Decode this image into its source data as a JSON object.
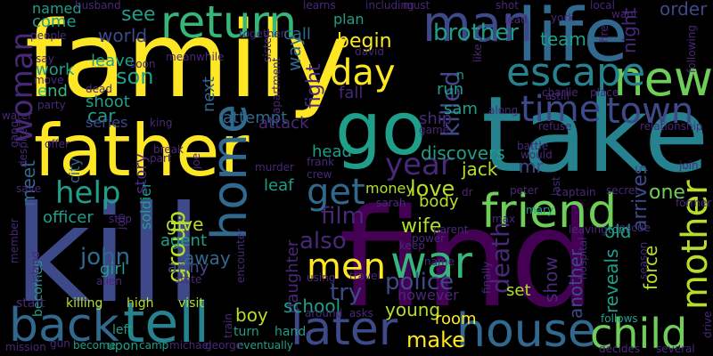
{
  "palette": {
    "yellow": "#fde725",
    "lime": "#b5de2b",
    "lgreen": "#6ece58",
    "green": "#35b779",
    "teal": "#1f9e89",
    "cyan": "#26828e",
    "blue": "#31688e",
    "indigo": "#3e4989",
    "purple": "#482878",
    "dpurple": "#440154"
  },
  "words": [
    {
      "t": "family",
      "c": "yellow"
    },
    {
      "t": "kill",
      "c": "indigo"
    },
    {
      "t": "find",
      "c": "dpurple"
    },
    {
      "t": "take",
      "c": "cyan"
    },
    {
      "t": "father",
      "c": "yellow"
    },
    {
      "t": "life",
      "c": "blue"
    },
    {
      "t": "man",
      "c": "indigo"
    },
    {
      "t": "go",
      "c": "teal"
    },
    {
      "t": "back",
      "c": "blue"
    },
    {
      "t": "tell",
      "c": "cyan"
    },
    {
      "t": "home",
      "c": "blue"
    },
    {
      "t": "return",
      "c": "green"
    },
    {
      "t": "new",
      "c": "lgreen"
    },
    {
      "t": "friend",
      "c": "lgreen"
    },
    {
      "t": "later",
      "c": "indigo"
    },
    {
      "t": "house",
      "c": "blue"
    },
    {
      "t": "child",
      "c": "lgreen"
    },
    {
      "t": "escape",
      "c": "cyan"
    },
    {
      "t": "time",
      "c": "indigo"
    },
    {
      "t": "town",
      "c": "indigo"
    },
    {
      "t": "war",
      "c": "green"
    },
    {
      "t": "mother",
      "c": "lime"
    },
    {
      "t": "men",
      "c": "yellow"
    },
    {
      "t": "day",
      "c": "yellow"
    },
    {
      "t": "get",
      "c": "blue"
    },
    {
      "t": "year",
      "c": "purple"
    },
    {
      "t": "help",
      "c": "teal"
    },
    {
      "t": "woman",
      "c": "purple"
    },
    {
      "t": "love",
      "c": "lime"
    },
    {
      "t": "police",
      "c": "indigo"
    },
    {
      "t": "make",
      "c": "yellow"
    },
    {
      "t": "film",
      "c": "purple"
    },
    {
      "t": "death",
      "c": "purple"
    },
    {
      "t": "group",
      "c": "lime"
    },
    {
      "t": "killed",
      "c": "indigo"
    },
    {
      "t": "brother",
      "c": "teal"
    },
    {
      "t": "son",
      "c": "teal"
    },
    {
      "t": "john",
      "c": "blue"
    },
    {
      "t": "also",
      "c": "purple"
    },
    {
      "t": "try",
      "c": "indigo"
    },
    {
      "t": "see",
      "c": "teal"
    },
    {
      "t": "world",
      "c": "indigo"
    },
    {
      "t": "begin",
      "c": "yellow"
    },
    {
      "t": "fight",
      "c": "purple"
    },
    {
      "t": "wife",
      "c": "lime"
    },
    {
      "t": "daughter",
      "c": "purple"
    },
    {
      "t": "school",
      "c": "teal"
    },
    {
      "t": "young",
      "c": "lime"
    },
    {
      "t": "boy",
      "c": "lime"
    },
    {
      "t": "room",
      "c": "yellow"
    },
    {
      "t": "show",
      "c": "purple"
    },
    {
      "t": "another",
      "c": "indigo"
    },
    {
      "t": "reveals",
      "c": "teal"
    },
    {
      "t": "force",
      "c": "lime"
    },
    {
      "t": "old",
      "c": "teal"
    },
    {
      "t": "one",
      "c": "lgreen"
    },
    {
      "t": "arrives",
      "c": "indigo"
    },
    {
      "t": "mr",
      "c": "indigo"
    },
    {
      "t": "jack",
      "c": "lime"
    },
    {
      "t": "discovers",
      "c": "teal"
    },
    {
      "t": "money",
      "c": "lime"
    },
    {
      "t": "body",
      "c": "lime"
    },
    {
      "t": "soldier",
      "c": "teal"
    },
    {
      "t": "leaf",
      "c": "teal"
    },
    {
      "t": "officer",
      "c": "teal"
    },
    {
      "t": "give",
      "c": "lime"
    },
    {
      "t": "agent",
      "c": "teal"
    },
    {
      "t": "away",
      "c": "blue"
    },
    {
      "t": "army",
      "c": "indigo"
    },
    {
      "t": "girl",
      "c": "teal"
    },
    {
      "t": "meet",
      "c": "blue"
    },
    {
      "t": "city",
      "c": "blue"
    },
    {
      "t": "work",
      "c": "teal"
    },
    {
      "t": "come",
      "c": "teal"
    },
    {
      "t": "named",
      "c": "teal"
    },
    {
      "t": "end",
      "c": "green"
    },
    {
      "t": "shoot",
      "c": "teal"
    },
    {
      "t": "car",
      "c": "teal"
    },
    {
      "t": "series",
      "c": "indigo"
    },
    {
      "t": "story",
      "c": "purple"
    },
    {
      "t": "leave",
      "c": "teal"
    },
    {
      "t": "next",
      "c": "blue"
    },
    {
      "t": "way",
      "c": "blue"
    },
    {
      "t": "attempt",
      "c": "blue"
    },
    {
      "t": "attack",
      "c": "purple"
    },
    {
      "t": "call",
      "c": "blue"
    },
    {
      "t": "plan",
      "c": "teal"
    },
    {
      "t": "fall",
      "c": "purple"
    },
    {
      "t": "sam",
      "c": "teal"
    },
    {
      "t": "run",
      "c": "teal"
    },
    {
      "t": "ship",
      "c": "purple"
    },
    {
      "t": "head",
      "c": "teal"
    },
    {
      "t": "team",
      "c": "teal"
    },
    {
      "t": "order",
      "c": "indigo"
    },
    {
      "t": "night",
      "c": "purple"
    },
    {
      "t": "set",
      "c": "lime"
    },
    {
      "t": "however",
      "c": "purple"
    },
    {
      "t": "becomes",
      "c": "teal"
    },
    {
      "t": "hand",
      "c": "teal"
    },
    {
      "t": "turn",
      "c": "teal"
    },
    {
      "t": "killing",
      "c": "lime"
    },
    {
      "t": "high",
      "c": "lime"
    },
    {
      "t": "visit",
      "c": "lime"
    },
    {
      "t": "left",
      "c": "teal"
    },
    {
      "t": "upon",
      "c": "teal"
    },
    {
      "t": "become",
      "c": "teal"
    },
    {
      "t": "camp",
      "c": "teal"
    },
    {
      "t": "michael",
      "c": "purple"
    },
    {
      "t": "eventually",
      "c": "teal"
    },
    {
      "t": "around",
      "c": "purple"
    },
    {
      "t": "asks",
      "c": "purple"
    },
    {
      "t": "start",
      "c": "purple"
    },
    {
      "t": "mission",
      "c": "purple"
    },
    {
      "t": "gun",
      "c": "purple"
    },
    {
      "t": "decides",
      "c": "purple"
    },
    {
      "t": "several",
      "c": "purple"
    },
    {
      "t": "follows",
      "c": "teal"
    },
    {
      "t": "drive",
      "c": "purple"
    },
    {
      "t": "king",
      "c": "purple"
    },
    {
      "t": "rescue",
      "c": "purple"
    },
    {
      "t": "leaving",
      "c": "purple"
    },
    {
      "t": "tom",
      "c": "teal"
    },
    {
      "t": "finally",
      "c": "purple"
    },
    {
      "t": "travel",
      "c": "purple"
    },
    {
      "t": "using",
      "c": "purple"
    },
    {
      "t": "mary",
      "c": "teal"
    },
    {
      "t": "captain",
      "c": "purple"
    },
    {
      "t": "secret",
      "c": "purple"
    },
    {
      "t": "former",
      "c": "purple"
    },
    {
      "t": "join",
      "c": "purple"
    },
    {
      "t": "relationship",
      "c": "purple"
    },
    {
      "t": "refuse",
      "c": "purple"
    },
    {
      "t": "battle",
      "c": "purple"
    },
    {
      "t": "would",
      "c": "purple"
    },
    {
      "t": "including",
      "c": "purple"
    },
    {
      "t": "must",
      "c": "purple"
    },
    {
      "t": "shot",
      "c": "purple"
    },
    {
      "t": "lead",
      "c": "purple"
    },
    {
      "t": "york",
      "c": "purple"
    },
    {
      "t": "local",
      "c": "purple"
    },
    {
      "t": "want",
      "c": "purple"
    },
    {
      "t": "together",
      "c": "purple"
    },
    {
      "t": "meanwhile",
      "c": "purple"
    },
    {
      "t": "david",
      "c": "purple"
    },
    {
      "t": "learns",
      "c": "purple"
    },
    {
      "t": "husband",
      "c": "purple"
    },
    {
      "t": "people",
      "c": "purple"
    },
    {
      "t": "say",
      "c": "purple"
    },
    {
      "t": "move",
      "c": "purple"
    },
    {
      "t": "dead",
      "c": "purple"
    },
    {
      "t": "party",
      "c": "purple"
    },
    {
      "t": "water",
      "c": "purple"
    },
    {
      "t": "gang",
      "c": "purple"
    },
    {
      "t": "offer",
      "c": "purple"
    },
    {
      "t": "despite",
      "c": "purple"
    },
    {
      "t": "save",
      "c": "purple"
    },
    {
      "t": "member",
      "c": "purple"
    },
    {
      "t": "island",
      "c": "purple"
    },
    {
      "t": "alien",
      "c": "purple"
    },
    {
      "t": "state",
      "c": "purple"
    },
    {
      "t": "stop",
      "c": "purple"
    },
    {
      "t": "job",
      "c": "purple"
    },
    {
      "t": "encounter",
      "c": "purple"
    },
    {
      "t": "sarah",
      "c": "purple"
    },
    {
      "t": "dr",
      "c": "purple"
    },
    {
      "t": "max",
      "c": "purple"
    },
    {
      "t": "peter",
      "c": "purple"
    },
    {
      "t": "keep",
      "c": "purple"
    },
    {
      "t": "power",
      "c": "purple"
    },
    {
      "t": "name",
      "c": "purple"
    },
    {
      "t": "parent",
      "c": "purple"
    },
    {
      "t": "crew",
      "c": "purple"
    },
    {
      "t": "frank",
      "c": "purple"
    },
    {
      "t": "murder",
      "c": "purple"
    },
    {
      "t": "joe",
      "c": "purple"
    },
    {
      "t": "part",
      "c": "purple"
    },
    {
      "t": "break",
      "c": "purple"
    },
    {
      "t": "charlie",
      "c": "purple"
    },
    {
      "t": "place",
      "c": "purple"
    },
    {
      "t": "along",
      "c": "purple"
    },
    {
      "t": "game",
      "c": "purple"
    },
    {
      "t": "fire",
      "c": "purple"
    },
    {
      "t": "following",
      "c": "purple"
    },
    {
      "t": "last",
      "c": "purple"
    },
    {
      "t": "hospital",
      "c": "purple"
    },
    {
      "t": "season",
      "c": "purple"
    },
    {
      "t": "train",
      "c": "purple"
    },
    {
      "t": "george",
      "c": "purple"
    },
    {
      "t": "sister",
      "c": "purple"
    },
    {
      "t": "apartment",
      "c": "purple"
    },
    {
      "t": "n",
      "c": "teal"
    },
    {
      "t": "a",
      "c": "purple"
    },
    {
      "t": "still",
      "c": "purple"
    },
    {
      "t": "like",
      "c": "purple"
    },
    {
      "t": "soon",
      "c": "purple"
    }
  ]
}
